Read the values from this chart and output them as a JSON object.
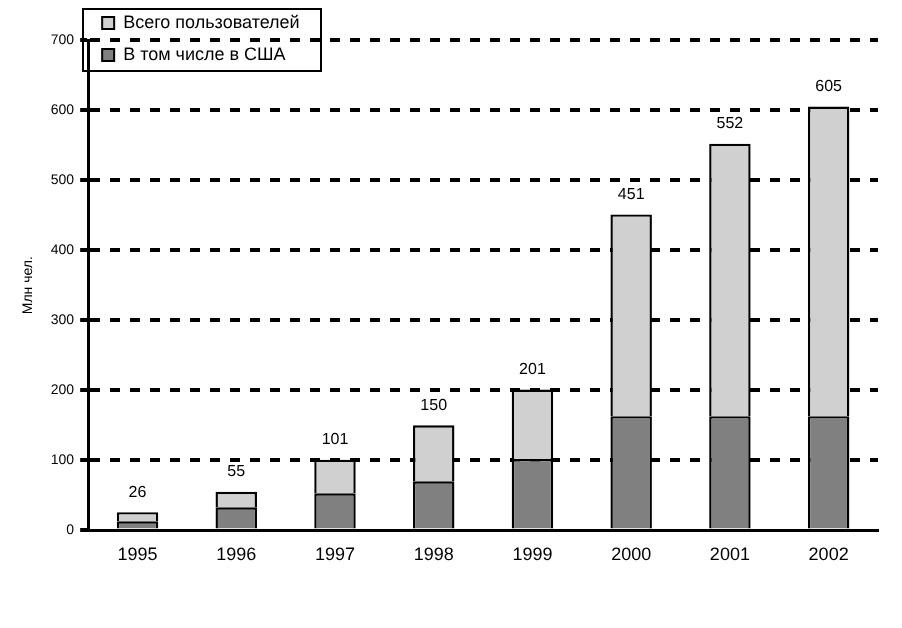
{
  "chart_data": {
    "type": "bar",
    "stacked": true,
    "ylabel": "Млн чел.",
    "categories": [
      "1995",
      "1996",
      "1997",
      "1998",
      "1999",
      "2000",
      "2001",
      "2002"
    ],
    "series": [
      {
        "name": "В том числе в США",
        "color": "#808080",
        "values": [
          13,
          33,
          53,
          70,
          102,
          163,
          163,
          163
        ]
      },
      {
        "name": "Всего пользователей",
        "color": "#d0d0d0",
        "values": [
          13,
          22,
          48,
          80,
          99,
          288,
          389,
          442
        ]
      }
    ],
    "totals": [
      "26",
      "55",
      "101",
      "150",
      "201",
      "451",
      "552",
      "605"
    ],
    "ylim": [
      0,
      700
    ],
    "yticks": [
      0,
      100,
      200,
      300,
      400,
      500,
      600,
      700
    ],
    "grid": "y",
    "legend": "top left"
  }
}
